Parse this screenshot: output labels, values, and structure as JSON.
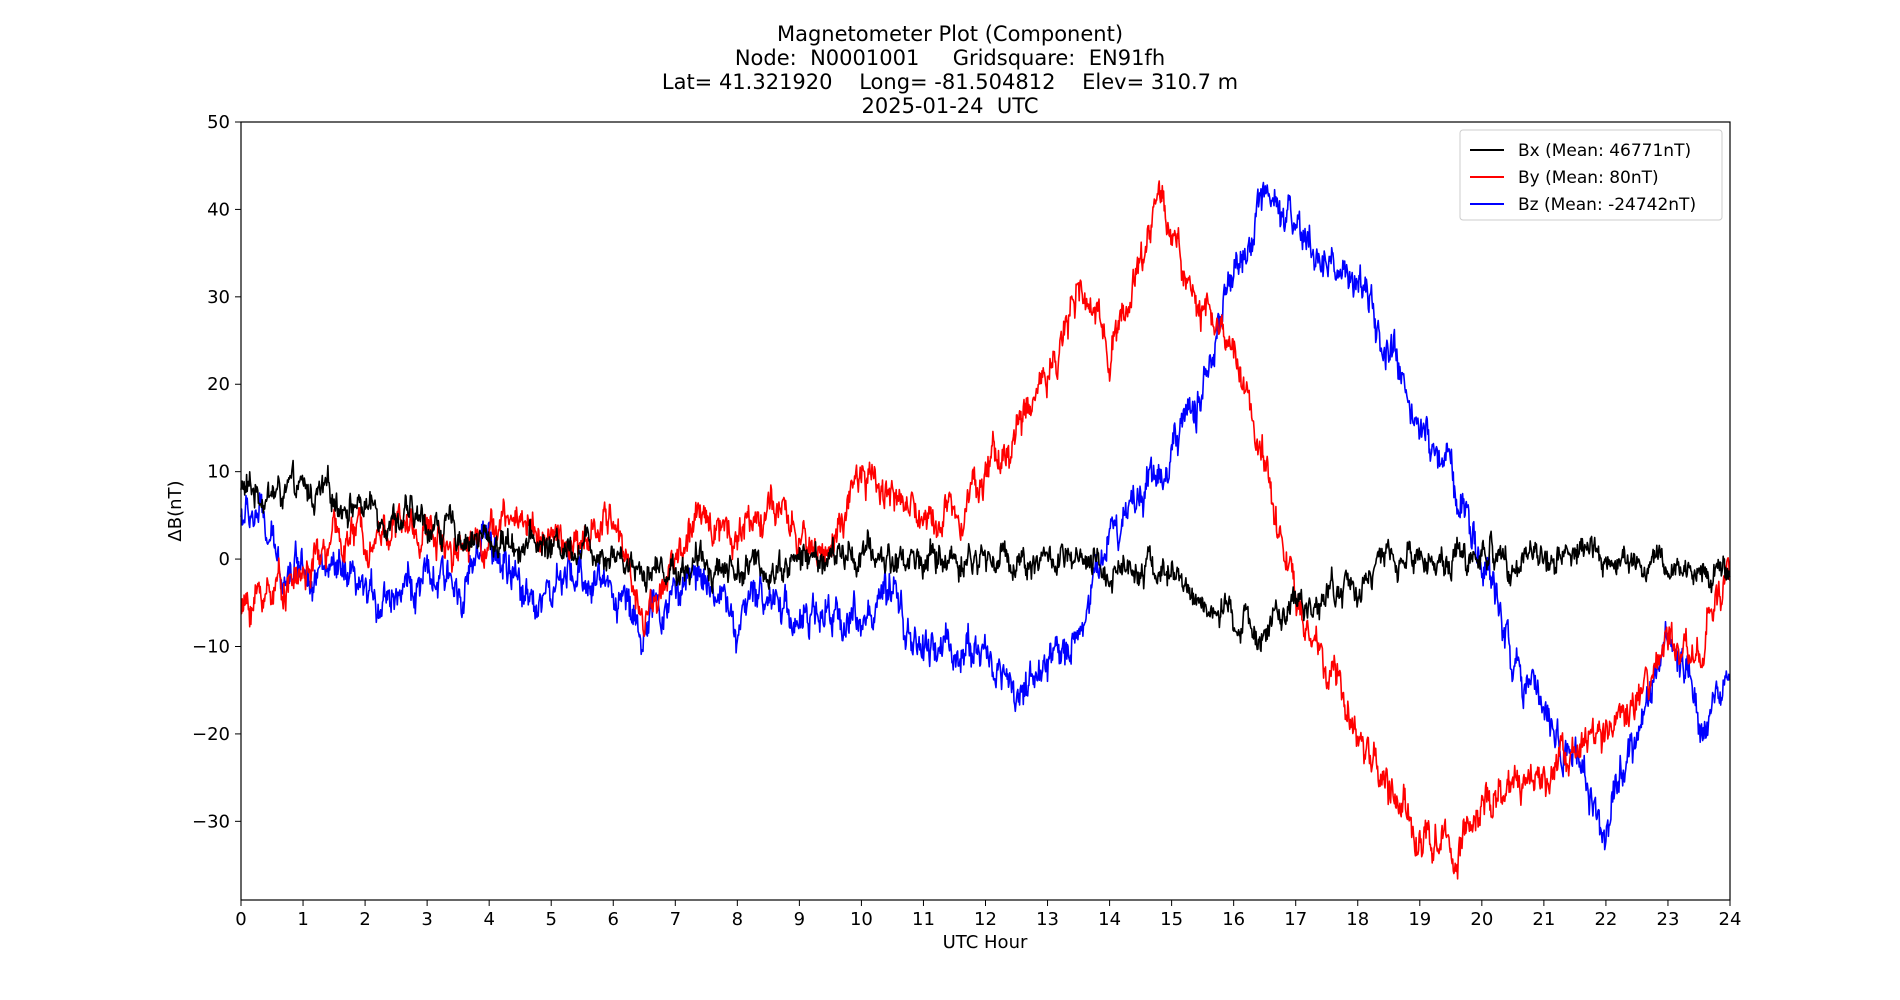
{
  "chart_data": {
    "type": "line",
    "title_lines": [
      "Magnetometer Plot (Component)",
      "Node:  N0001001     Gridsquare:  EN91fh",
      "Lat= 41.321920    Long= -81.504812    Elev= 310.7 m",
      "2025-01-24  UTC"
    ],
    "xlabel": "UTC Hour",
    "ylabel": "ΔB(nT)",
    "xlim": [
      0,
      24
    ],
    "ylim": [
      -39,
      50
    ],
    "x_ticks": [
      0,
      1,
      2,
      3,
      4,
      5,
      6,
      7,
      8,
      9,
      10,
      11,
      12,
      13,
      14,
      15,
      16,
      17,
      18,
      19,
      20,
      21,
      22,
      23,
      24
    ],
    "y_ticks": [
      -30,
      -20,
      -10,
      0,
      10,
      20,
      30,
      40,
      50
    ],
    "y_tick_labels": [
      "−30",
      "−20",
      "−10",
      "0",
      "10",
      "20",
      "30",
      "40",
      "50"
    ],
    "grid": false,
    "legend_position": "top-right",
    "series": [
      {
        "name": "Bx (Mean: 46771nT)",
        "color": "#000000",
        "points": [
          [
            0,
            8
          ],
          [
            0.5,
            7.5
          ],
          [
            1,
            7.5
          ],
          [
            1.5,
            7
          ],
          [
            2,
            6
          ],
          [
            2.5,
            5
          ],
          [
            3,
            4
          ],
          [
            3.5,
            3
          ],
          [
            4,
            2
          ],
          [
            4.5,
            2
          ],
          [
            5,
            1.5
          ],
          [
            5.5,
            2
          ],
          [
            6,
            1
          ],
          [
            6.5,
            -1
          ],
          [
            7,
            -1
          ],
          [
            7.5,
            -0.5
          ],
          [
            8,
            -1
          ],
          [
            8.5,
            -1
          ],
          [
            9,
            0
          ],
          [
            9.5,
            0
          ],
          [
            10,
            0.5
          ],
          [
            10.5,
            0
          ],
          [
            11,
            0
          ],
          [
            11.5,
            0
          ],
          [
            12,
            0
          ],
          [
            12.5,
            0
          ],
          [
            13,
            0
          ],
          [
            13.5,
            -1
          ],
          [
            14,
            -1.5
          ],
          [
            14.5,
            0
          ],
          [
            15,
            -2
          ],
          [
            15.5,
            -5
          ],
          [
            16,
            -7.5
          ],
          [
            16.5,
            -8
          ],
          [
            17,
            -6
          ],
          [
            17.5,
            -4
          ],
          [
            18,
            -3
          ],
          [
            18.5,
            0
          ],
          [
            19,
            0
          ],
          [
            19.5,
            0
          ],
          [
            20,
            0.5
          ],
          [
            20.5,
            0.5
          ],
          [
            21,
            0
          ],
          [
            21.5,
            1
          ],
          [
            22,
            0
          ],
          [
            22.5,
            -1
          ],
          [
            23,
            -1
          ],
          [
            23.5,
            -1.5
          ],
          [
            24,
            -1
          ]
        ]
      },
      {
        "name": "By (Mean: 80nT)",
        "color": "#ff0000",
        "points": [
          [
            0,
            -6
          ],
          [
            0.5,
            -3
          ],
          [
            1,
            -2
          ],
          [
            1.5,
            2
          ],
          [
            2,
            3
          ],
          [
            2.5,
            4
          ],
          [
            3,
            3
          ],
          [
            3.5,
            2
          ],
          [
            4,
            3
          ],
          [
            4.5,
            5
          ],
          [
            5,
            2
          ],
          [
            5.5,
            1
          ],
          [
            6,
            5
          ],
          [
            6.5,
            -7
          ],
          [
            7,
            0
          ],
          [
            7.5,
            5
          ],
          [
            8,
            3
          ],
          [
            8.5,
            6
          ],
          [
            9,
            2
          ],
          [
            9.5,
            1
          ],
          [
            10,
            9
          ],
          [
            10.5,
            8
          ],
          [
            11,
            4
          ],
          [
            11.5,
            6
          ],
          [
            12,
            10
          ],
          [
            12.5,
            14
          ],
          [
            13,
            22
          ],
          [
            13.5,
            30
          ],
          [
            14,
            25
          ],
          [
            14.5,
            33
          ],
          [
            14.8,
            43
          ],
          [
            15,
            37
          ],
          [
            15.5,
            28
          ],
          [
            16,
            24
          ],
          [
            16.5,
            12
          ],
          [
            17,
            -5
          ],
          [
            17.5,
            -13
          ],
          [
            18,
            -20
          ],
          [
            18.5,
            -26
          ],
          [
            19,
            -32
          ],
          [
            19.5,
            -33
          ],
          [
            20,
            -29
          ],
          [
            20.5,
            -27
          ],
          [
            21,
            -25
          ],
          [
            21.5,
            -20
          ],
          [
            22,
            -21
          ],
          [
            22.5,
            -17
          ],
          [
            23,
            -10
          ],
          [
            23.5,
            -10
          ],
          [
            24,
            -2
          ]
        ]
      },
      {
        "name": "Bz (Mean: -24742nT)",
        "color": "#0000ff",
        "points": [
          [
            0,
            5
          ],
          [
            0.3,
            5
          ],
          [
            0.6,
            -1
          ],
          [
            1,
            0
          ],
          [
            1.5,
            -2
          ],
          [
            2,
            -5
          ],
          [
            2.5,
            -3
          ],
          [
            3,
            -3
          ],
          [
            3.5,
            -3
          ],
          [
            4,
            2
          ],
          [
            4.5,
            -4
          ],
          [
            5,
            -4
          ],
          [
            5.5,
            -2
          ],
          [
            6,
            -3
          ],
          [
            6.5,
            -8
          ],
          [
            7,
            -4
          ],
          [
            7.5,
            -1
          ],
          [
            8,
            -8
          ],
          [
            8.5,
            -3
          ],
          [
            9,
            -7
          ],
          [
            9.5,
            -7
          ],
          [
            10,
            -6
          ],
          [
            10.5,
            -5
          ],
          [
            11,
            -11
          ],
          [
            11.5,
            -10
          ],
          [
            12,
            -11
          ],
          [
            12.5,
            -15
          ],
          [
            13,
            -13
          ],
          [
            13.5,
            -8
          ],
          [
            14,
            3
          ],
          [
            14.5,
            8
          ],
          [
            15,
            12
          ],
          [
            15.5,
            20
          ],
          [
            16,
            32
          ],
          [
            16.5,
            40
          ],
          [
            17,
            37
          ],
          [
            17.5,
            34
          ],
          [
            18,
            31
          ],
          [
            18.5,
            23
          ],
          [
            19,
            15
          ],
          [
            19.5,
            10
          ],
          [
            20,
            0
          ],
          [
            20.5,
            -10
          ],
          [
            21,
            -17
          ],
          [
            21.5,
            -23
          ],
          [
            22,
            -31
          ],
          [
            22.5,
            -20
          ],
          [
            23,
            -10
          ],
          [
            23.5,
            -17
          ],
          [
            24,
            -14
          ]
        ]
      }
    ]
  }
}
